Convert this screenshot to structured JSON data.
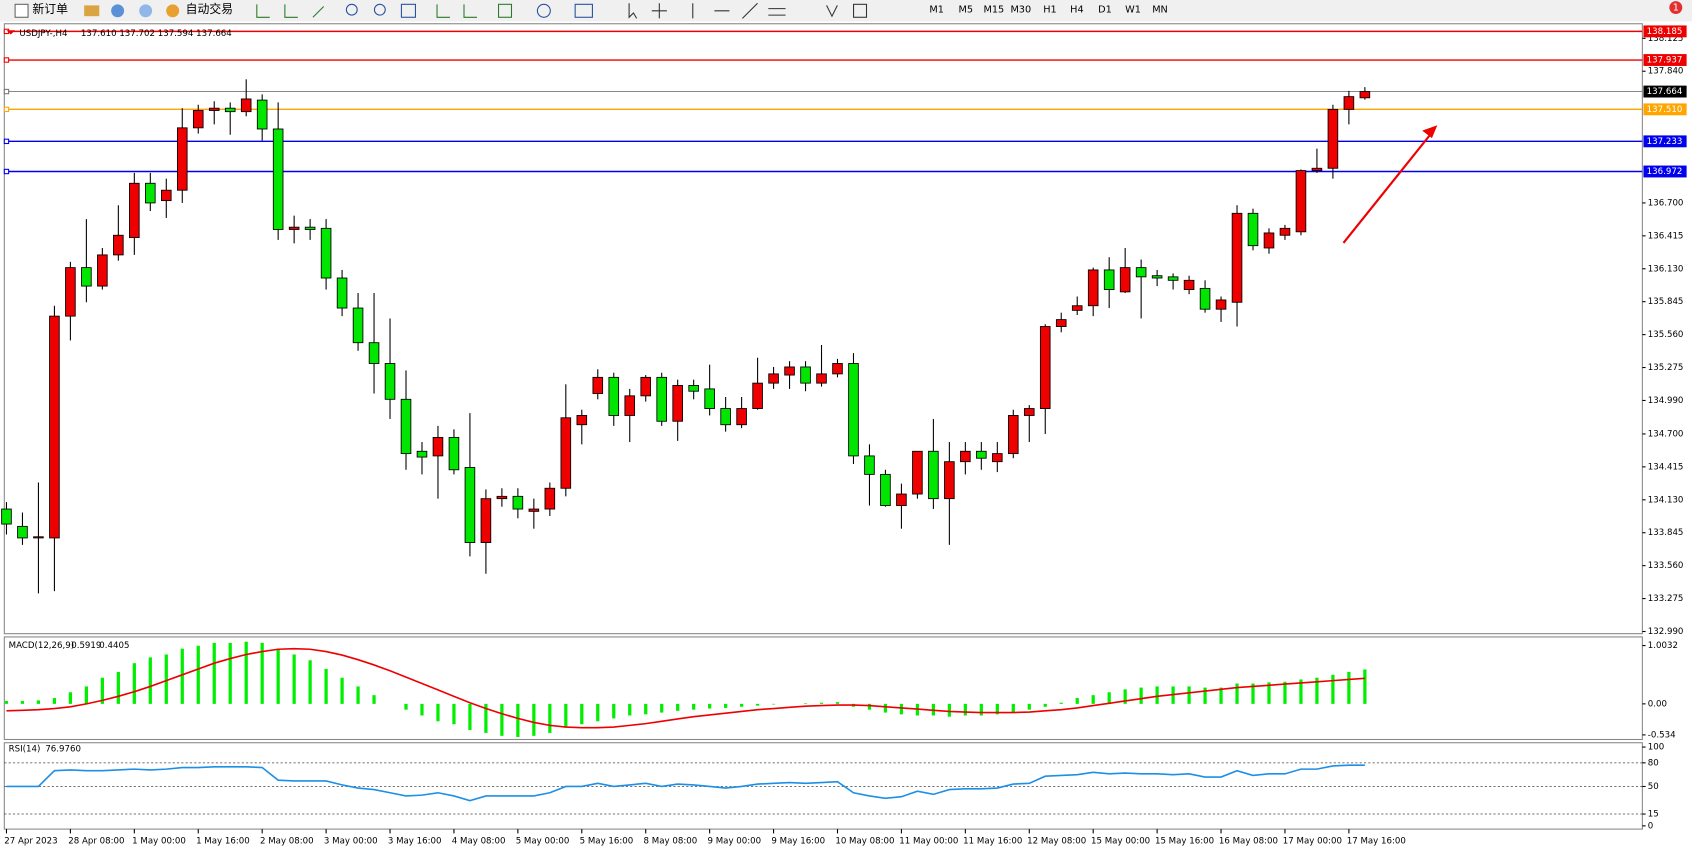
{
  "toolbar": {
    "new_order": "新订单",
    "auto_trading": "自动交易",
    "timeframes": [
      "M1",
      "M5",
      "M15",
      "M30",
      "H1",
      "H4",
      "D1",
      "W1",
      "MN"
    ],
    "notifications": 1
  },
  "chart_data": [
    {
      "type": "candlestick",
      "title": "USDJPY-,H4",
      "readout": "137.610 137.702 137.594 137.664",
      "up_color": "#ee0000",
      "down_color": "#00e600",
      "categories": [
        "27 Apr 2023",
        null,
        null,
        null,
        "28 Apr 08:00",
        null,
        null,
        null,
        "1 May 00:00",
        null,
        null,
        null,
        "1 May 16:00",
        null,
        null,
        null,
        "2 May 08:00",
        null,
        null,
        null,
        "3 May 00:00",
        null,
        null,
        null,
        "3 May 16:00",
        null,
        null,
        null,
        "4 May 08:00",
        null,
        null,
        null,
        "5 May 00:00",
        null,
        null,
        null,
        "5 May 16:00",
        null,
        null,
        null,
        "8 May 08:00",
        null,
        null,
        null,
        "9 May 00:00",
        null,
        null,
        null,
        "9 May 16:00",
        null,
        null,
        null,
        "10 May 08:00",
        null,
        null,
        null,
        "11 May 00:00",
        null,
        null,
        null,
        "11 May 16:00",
        null,
        null,
        null,
        "12 May 08:00",
        null,
        null,
        null,
        "15 May 00:00",
        null,
        null,
        null,
        "15 May 16:00",
        null,
        null,
        null,
        "16 May 08:00",
        null,
        null,
        null,
        "17 May 00:00",
        null,
        null,
        null,
        "17 May 16:00",
        null
      ],
      "open": [
        134.05,
        133.9,
        133.8,
        133.8,
        135.72,
        136.14,
        135.98,
        136.25,
        136.4,
        136.87,
        136.72,
        136.81,
        137.35,
        137.5,
        137.52,
        137.49,
        137.59,
        137.34,
        136.47,
        136.49,
        136.48,
        136.05,
        135.79,
        135.49,
        135.31,
        135.0,
        134.55,
        134.51,
        134.67,
        134.41,
        133.76,
        134.14,
        134.16,
        134.03,
        134.05,
        134.23,
        134.78,
        135.05,
        135.19,
        134.86,
        135.03,
        135.19,
        134.81,
        135.12,
        135.09,
        134.92,
        134.78,
        134.92,
        135.14,
        135.21,
        135.28,
        135.14,
        135.22,
        135.31,
        134.51,
        134.35,
        134.08,
        134.18,
        134.55,
        134.14,
        134.46,
        134.55,
        134.46,
        134.53,
        134.86,
        134.92,
        135.63,
        135.77,
        135.81,
        136.12,
        135.93,
        136.14,
        136.07,
        136.06,
        135.95,
        135.96,
        135.78,
        135.84,
        136.61,
        136.31,
        136.42,
        136.45,
        136.98,
        137.0,
        137.51,
        137.61
      ],
      "high": [
        134.11,
        134.02,
        134.28,
        135.81,
        136.19,
        136.56,
        136.31,
        136.68,
        136.96,
        136.96,
        136.91,
        137.52,
        137.55,
        137.58,
        137.57,
        137.77,
        137.64,
        137.57,
        136.59,
        136.56,
        136.56,
        136.12,
        135.92,
        135.92,
        135.7,
        135.25,
        134.63,
        134.77,
        134.74,
        134.88,
        134.22,
        134.23,
        134.23,
        134.14,
        134.28,
        135.13,
        134.91,
        135.26,
        135.23,
        135.09,
        135.21,
        135.23,
        135.17,
        135.17,
        135.3,
        135.02,
        135.02,
        135.36,
        135.28,
        135.33,
        135.33,
        135.47,
        135.35,
        135.4,
        134.61,
        134.39,
        134.27,
        134.55,
        134.83,
        134.63,
        134.63,
        134.63,
        134.63,
        134.91,
        134.95,
        135.65,
        135.75,
        135.89,
        136.14,
        136.23,
        136.31,
        136.21,
        136.12,
        136.09,
        136.07,
        136.03,
        135.89,
        136.68,
        136.65,
        136.48,
        136.51,
        136.99,
        137.17,
        137.55,
        137.67,
        137.702
      ],
      "low": [
        133.83,
        133.74,
        133.32,
        133.34,
        135.51,
        135.84,
        135.95,
        136.2,
        136.25,
        136.63,
        136.57,
        136.7,
        137.3,
        137.38,
        137.29,
        137.45,
        137.24,
        136.38,
        136.35,
        136.38,
        135.95,
        135.72,
        135.42,
        135.05,
        134.83,
        134.39,
        134.35,
        134.14,
        134.35,
        133.64,
        133.49,
        134.07,
        133.97,
        133.88,
        133.99,
        134.16,
        134.61,
        135.0,
        134.77,
        134.63,
        134.98,
        134.77,
        134.64,
        135.0,
        134.86,
        134.72,
        134.75,
        134.91,
        135.09,
        135.09,
        135.07,
        135.11,
        135.19,
        134.44,
        134.08,
        134.07,
        133.88,
        134.14,
        134.05,
        133.74,
        134.35,
        134.39,
        134.37,
        134.49,
        134.63,
        134.7,
        135.58,
        135.73,
        135.72,
        135.79,
        135.92,
        135.7,
        135.98,
        135.95,
        135.91,
        135.75,
        135.67,
        135.63,
        136.29,
        136.26,
        136.38,
        136.42,
        136.96,
        136.91,
        137.38,
        137.594
      ],
      "close": [
        133.92,
        133.8,
        133.81,
        135.72,
        136.14,
        135.98,
        136.25,
        136.42,
        136.87,
        136.7,
        136.81,
        137.35,
        137.5,
        137.52,
        137.49,
        137.6,
        137.34,
        136.47,
        136.49,
        136.47,
        136.05,
        135.79,
        135.49,
        135.31,
        135.0,
        134.53,
        134.5,
        134.67,
        134.39,
        133.76,
        134.14,
        134.16,
        134.05,
        134.05,
        134.23,
        134.84,
        134.86,
        135.19,
        134.86,
        135.03,
        135.19,
        134.81,
        135.12,
        135.07,
        134.92,
        134.78,
        134.92,
        135.14,
        135.22,
        135.28,
        135.14,
        135.22,
        135.31,
        134.51,
        134.35,
        134.08,
        134.18,
        134.55,
        134.14,
        134.46,
        134.55,
        134.49,
        134.53,
        134.86,
        134.92,
        135.63,
        135.69,
        135.81,
        136.12,
        135.95,
        136.14,
        136.06,
        136.05,
        136.03,
        136.03,
        135.78,
        135.86,
        136.61,
        136.33,
        136.44,
        136.48,
        136.98,
        137.0,
        137.51,
        137.62,
        137.664
      ],
      "ylim": [
        132.971,
        138.251
      ],
      "yticks": [
        138.125,
        {
          "value": 137.84,
          "label": "137.840"
        },
        {
          "value": 136.7,
          "label": "136.700"
        },
        136.415,
        {
          "value": 136.13,
          "label": "136.130"
        },
        135.845,
        {
          "value": 135.56,
          "label": "135.560"
        },
        135.275,
        {
          "value": 134.99,
          "label": "134.990"
        },
        {
          "value": 134.7,
          "label": "134.700"
        },
        134.415,
        {
          "value": 134.13,
          "label": "134.130"
        },
        133.845,
        {
          "value": 133.56,
          "label": "133.560"
        },
        133.275,
        {
          "value": 132.99,
          "label": "132.990"
        }
      ],
      "levels": [
        {
          "value": 138.185,
          "color": "#ee0000"
        },
        {
          "value": 137.937,
          "color": "#ee0000"
        },
        {
          "value": 137.664,
          "color": "#000000"
        },
        {
          "value": 137.51,
          "label": "137.510",
          "color": "#ffa500"
        },
        {
          "value": 137.233,
          "color": "#0000ee"
        },
        {
          "value": 136.972,
          "color": "#0000ee"
        }
      ]
    },
    {
      "type": "macd",
      "title": "MACD(12,26,9)",
      "histogram_color": "#00ee00",
      "signal_color": "#ee0000",
      "histogram": [
        0.05,
        0.05,
        0.06,
        0.1,
        0.2,
        0.3,
        0.45,
        0.55,
        0.7,
        0.8,
        0.85,
        0.95,
        1.0,
        1.05,
        1.05,
        1.07,
        1.05,
        0.95,
        0.85,
        0.75,
        0.6,
        0.45,
        0.3,
        0.15,
        0.0,
        -0.1,
        -0.2,
        -0.3,
        -0.35,
        -0.45,
        -0.5,
        -0.55,
        -0.57,
        -0.55,
        -0.5,
        -0.4,
        -0.35,
        -0.3,
        -0.25,
        -0.2,
        -0.18,
        -0.15,
        -0.12,
        -0.1,
        -0.08,
        -0.07,
        -0.05,
        -0.03,
        -0.01,
        0.0,
        0.01,
        0.02,
        0.03,
        -0.05,
        -0.1,
        -0.15,
        -0.18,
        -0.2,
        -0.2,
        -0.22,
        -0.2,
        -0.2,
        -0.18,
        -0.15,
        -0.1,
        -0.05,
        0.02,
        0.1,
        0.15,
        0.2,
        0.25,
        0.28,
        0.3,
        0.3,
        0.3,
        0.28,
        0.28,
        0.35,
        0.35,
        0.37,
        0.38,
        0.42,
        0.45,
        0.5,
        0.55,
        0.5919
      ],
      "signal": [
        -0.12,
        -0.11,
        -0.1,
        -0.08,
        -0.05,
        0.0,
        0.06,
        0.13,
        0.21,
        0.3,
        0.4,
        0.5,
        0.6,
        0.7,
        0.78,
        0.85,
        0.9,
        0.94,
        0.95,
        0.94,
        0.9,
        0.84,
        0.76,
        0.67,
        0.57,
        0.46,
        0.35,
        0.24,
        0.13,
        0.02,
        -0.08,
        -0.17,
        -0.25,
        -0.32,
        -0.37,
        -0.4,
        -0.41,
        -0.41,
        -0.4,
        -0.37,
        -0.34,
        -0.3,
        -0.26,
        -0.22,
        -0.19,
        -0.16,
        -0.13,
        -0.1,
        -0.08,
        -0.06,
        -0.04,
        -0.03,
        -0.02,
        -0.02,
        -0.03,
        -0.05,
        -0.07,
        -0.09,
        -0.11,
        -0.13,
        -0.14,
        -0.15,
        -0.15,
        -0.15,
        -0.14,
        -0.12,
        -0.1,
        -0.07,
        -0.03,
        0.01,
        0.05,
        0.09,
        0.13,
        0.16,
        0.19,
        0.22,
        0.25,
        0.28,
        0.3,
        0.32,
        0.34,
        0.36,
        0.38,
        0.4,
        0.42,
        0.4405
      ],
      "ylim": [
        -0.613,
        1.152
      ],
      "yticks": [
        1.0032,
        {
          "value": 0,
          "label": "0.00"
        },
        -0.534
      ]
    },
    {
      "type": "rsi",
      "title": "RSI(14)",
      "readout": "76.9760",
      "color": "#1e8fe6",
      "values": [
        50,
        50,
        50,
        70,
        71,
        70,
        70,
        71,
        72,
        71,
        72,
        74,
        74,
        75,
        75,
        75,
        74,
        58,
        57,
        57,
        57,
        52,
        48,
        46,
        42,
        38,
        39,
        42,
        38,
        32,
        38,
        38,
        38,
        38,
        42,
        50,
        50,
        54,
        50,
        52,
        54,
        50,
        53,
        52,
        50,
        48,
        50,
        53,
        54,
        55,
        54,
        55,
        56,
        42,
        38,
        35,
        37,
        44,
        40,
        46,
        47,
        47,
        48,
        53,
        54,
        63,
        64,
        65,
        68,
        66,
        67,
        66,
        66,
        65,
        66,
        62,
        62,
        70,
        64,
        66,
        66,
        72,
        72,
        76,
        77,
        76.976
      ],
      "ylim": [
        -4.1,
        105.5
      ],
      "yticks": [
        100,
        80,
        50,
        15,
        0
      ],
      "levels": [
        80,
        50,
        15
      ]
    }
  ]
}
